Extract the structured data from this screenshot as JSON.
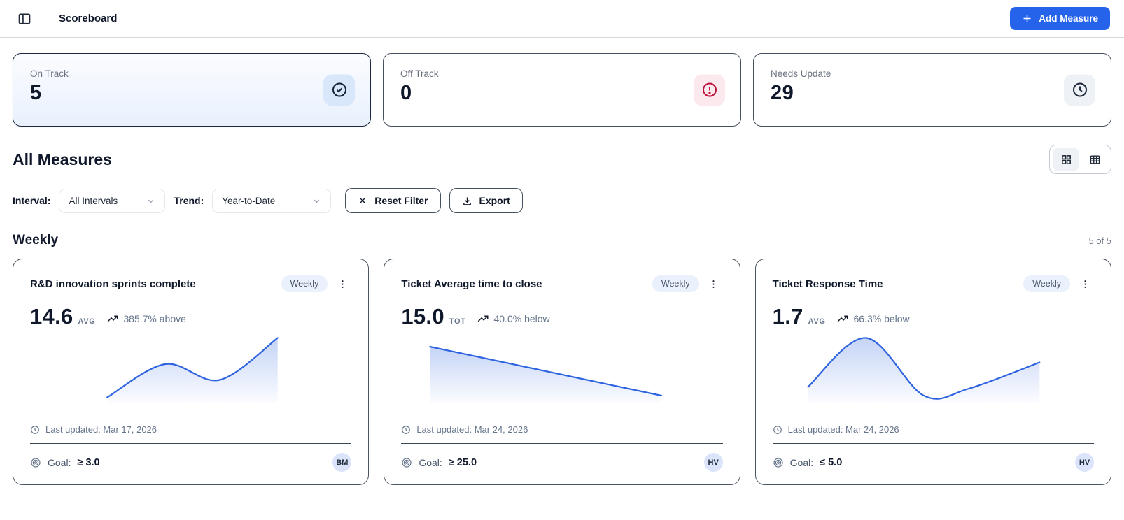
{
  "header": {
    "title": "Scoreboard",
    "add_button": "Add Measure"
  },
  "stats": [
    {
      "label": "On Track",
      "value": "5",
      "icon": "check-circle",
      "active": true
    },
    {
      "label": "Off Track",
      "value": "0",
      "icon": "alert-circle",
      "active": false
    },
    {
      "label": "Needs Update",
      "value": "29",
      "icon": "clock",
      "active": false
    }
  ],
  "measures_section": {
    "title": "All Measures"
  },
  "filters": {
    "interval_label": "Interval:",
    "interval_value": "All Intervals",
    "trend_label": "Trend:",
    "trend_value": "Year-to-Date",
    "reset_label": "Reset Filter",
    "export_label": "Export"
  },
  "group": {
    "title": "Weekly",
    "count": "5 of 5"
  },
  "cards": [
    {
      "title": "R&D innovation sprints complete",
      "badge": "Weekly",
      "value": "14.6",
      "unit": "AVG",
      "trend": "385.7% above",
      "last_updated": "Last updated: Mar 17, 2026",
      "goal_label": "Goal:",
      "goal": "≥ 3.0",
      "owner": "BM",
      "sparkline": {
        "points": [
          [
            24,
            37
          ],
          [
            42,
            18
          ],
          [
            59,
            27
          ],
          [
            77,
            3
          ]
        ]
      }
    },
    {
      "title": "Ticket Average time to close",
      "badge": "Weekly",
      "value": "15.0",
      "unit": "TOT",
      "trend": "40.0% below",
      "last_updated": "Last updated: Mar 24, 2026",
      "goal_label": "Goal:",
      "goal": "≥ 25.0",
      "owner": "HV",
      "sparkline": {
        "points": [
          [
            9,
            8
          ],
          [
            81,
            36
          ]
        ]
      }
    },
    {
      "title": "Ticket Response Time",
      "badge": "Weekly",
      "value": "1.7",
      "unit": "AVG",
      "trend": "66.3% below",
      "last_updated": "Last updated: Mar 24, 2026",
      "goal_label": "Goal:",
      "goal": "≤ 5.0",
      "owner": "HV",
      "sparkline": {
        "points": [
          [
            11,
            31
          ],
          [
            29,
            3
          ],
          [
            47,
            36
          ],
          [
            61,
            32
          ],
          [
            83,
            17
          ]
        ]
      }
    }
  ],
  "chart_data": {
    "type": "line",
    "note": "three sparklines, unlabeled axes, values normalized 0-1 (1 = high)",
    "series": [
      {
        "name": "R&D innovation sprints complete",
        "values": [
          0.08,
          0.55,
          0.33,
          0.93
        ]
      },
      {
        "name": "Ticket Average time to close",
        "values": [
          0.8,
          0.1
        ]
      },
      {
        "name": "Ticket Response Time",
        "values": [
          0.23,
          0.93,
          0.1,
          0.2,
          0.58
        ]
      }
    ]
  },
  "colors": {
    "accent": "#2563eb",
    "chart_line": "#2e63e0",
    "danger": "#be123c",
    "badge_bg": "#eaf0fc"
  }
}
